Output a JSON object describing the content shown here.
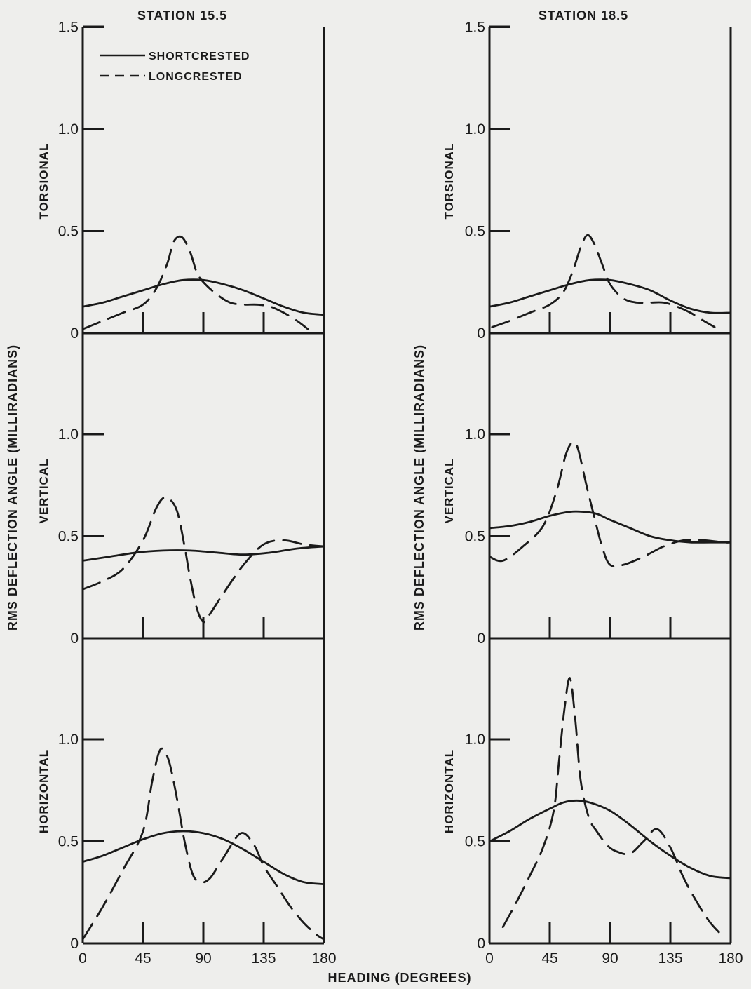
{
  "page": {
    "y_axis_title": "RMS DEFLECTION ANGLE (MILLIRADIANS)",
    "x_axis_title": "HEADING (DEGREES)",
    "legend": {
      "solid": "SHORTCRESTED",
      "dashed": "LONGCRESTED"
    },
    "colors": {
      "ink": "#1a1a1a",
      "background": "#eeeeec"
    }
  },
  "chart_data": [
    {
      "type": "line",
      "title": "STATION 15.5",
      "panel_label": "TORSIONAL",
      "xlim": [
        0,
        180
      ],
      "ylim": [
        0,
        1.5
      ],
      "x_ticks": [
        0,
        45,
        90,
        135,
        180
      ],
      "y_ticks": [
        "0",
        "0.5",
        "1.0",
        "1.5"
      ],
      "series": [
        {
          "name": "SHORTCRESTED",
          "style": "solid",
          "x": [
            0,
            15,
            30,
            45,
            60,
            75,
            90,
            105,
            120,
            135,
            150,
            165,
            180
          ],
          "y": [
            0.13,
            0.15,
            0.18,
            0.21,
            0.24,
            0.26,
            0.26,
            0.24,
            0.21,
            0.17,
            0.13,
            0.1,
            0.09
          ]
        },
        {
          "name": "LONGCRESTED",
          "style": "dashed",
          "x": [
            0,
            15,
            30,
            45,
            55,
            63,
            68,
            74,
            80,
            85,
            90,
            100,
            110,
            120,
            130,
            140,
            150,
            160,
            168
          ],
          "y": [
            0.02,
            0.06,
            0.1,
            0.14,
            0.22,
            0.34,
            0.45,
            0.47,
            0.4,
            0.3,
            0.25,
            0.19,
            0.15,
            0.14,
            0.14,
            0.13,
            0.1,
            0.06,
            0.02
          ]
        }
      ]
    },
    {
      "type": "line",
      "title": "",
      "panel_label": "VERTICAL",
      "xlim": [
        0,
        180
      ],
      "ylim": [
        0,
        1.5
      ],
      "x_ticks": [
        0,
        45,
        90,
        135,
        180
      ],
      "y_ticks": [
        "0",
        "0.5",
        "1.0"
      ],
      "series": [
        {
          "name": "SHORTCRESTED",
          "style": "solid",
          "x": [
            0,
            20,
            40,
            60,
            80,
            100,
            120,
            140,
            160,
            180
          ],
          "y": [
            0.38,
            0.4,
            0.42,
            0.43,
            0.43,
            0.42,
            0.41,
            0.42,
            0.44,
            0.45
          ]
        },
        {
          "name": "LONGCRESTED",
          "style": "dashed",
          "x": [
            0,
            15,
            30,
            45,
            55,
            62,
            70,
            76,
            80,
            85,
            90,
            95,
            105,
            120,
            135,
            150,
            165,
            180
          ],
          "y": [
            0.24,
            0.28,
            0.34,
            0.48,
            0.64,
            0.69,
            0.63,
            0.45,
            0.3,
            0.15,
            0.08,
            0.12,
            0.22,
            0.36,
            0.46,
            0.48,
            0.46,
            0.45
          ]
        }
      ]
    },
    {
      "type": "line",
      "title": "",
      "panel_label": "HORIZONTAL",
      "xlim": [
        0,
        180
      ],
      "ylim": [
        0,
        1.5
      ],
      "x_ticks": [
        0,
        45,
        90,
        135,
        180
      ],
      "x_tick_labels": [
        "0",
        "45",
        "90",
        "135",
        "180"
      ],
      "y_ticks": [
        "0",
        "0.5",
        "1.0"
      ],
      "series": [
        {
          "name": "SHORTCRESTED",
          "style": "solid",
          "x": [
            0,
            15,
            30,
            45,
            60,
            75,
            90,
            105,
            120,
            135,
            150,
            165,
            180
          ],
          "y": [
            0.4,
            0.43,
            0.47,
            0.51,
            0.54,
            0.55,
            0.54,
            0.51,
            0.46,
            0.4,
            0.34,
            0.3,
            0.29
          ]
        },
        {
          "name": "LONGCRESTED",
          "style": "dashed",
          "x": [
            0,
            15,
            30,
            45,
            52,
            58,
            64,
            70,
            76,
            82,
            88,
            95,
            105,
            118,
            128,
            135,
            145,
            155,
            165,
            175,
            180
          ],
          "y": [
            0.02,
            0.18,
            0.36,
            0.55,
            0.8,
            0.95,
            0.9,
            0.72,
            0.5,
            0.34,
            0.3,
            0.32,
            0.42,
            0.54,
            0.48,
            0.38,
            0.28,
            0.18,
            0.1,
            0.04,
            0.02
          ]
        }
      ]
    },
    {
      "type": "line",
      "title": "STATION 18.5",
      "panel_label": "TORSIONAL",
      "xlim": [
        0,
        180
      ],
      "ylim": [
        0,
        1.5
      ],
      "x_ticks": [
        0,
        45,
        90,
        135,
        180
      ],
      "y_ticks": [
        "0",
        "0.5",
        "1.0",
        "1.5"
      ],
      "series": [
        {
          "name": "SHORTCRESTED",
          "style": "solid",
          "x": [
            0,
            15,
            30,
            45,
            60,
            75,
            90,
            105,
            120,
            135,
            150,
            165,
            180
          ],
          "y": [
            0.13,
            0.15,
            0.18,
            0.21,
            0.24,
            0.26,
            0.26,
            0.24,
            0.21,
            0.16,
            0.12,
            0.1,
            0.1
          ]
        },
        {
          "name": "LONGCRESTED",
          "style": "dashed",
          "x": [
            2,
            15,
            30,
            45,
            55,
            62,
            68,
            73,
            78,
            84,
            90,
            100,
            110,
            120,
            130,
            140,
            150,
            160,
            168
          ],
          "y": [
            0.03,
            0.06,
            0.1,
            0.14,
            0.2,
            0.3,
            0.42,
            0.48,
            0.44,
            0.34,
            0.24,
            0.17,
            0.15,
            0.15,
            0.15,
            0.13,
            0.1,
            0.06,
            0.03
          ]
        }
      ]
    },
    {
      "type": "line",
      "title": "",
      "panel_label": "VERTICAL",
      "xlim": [
        0,
        180
      ],
      "ylim": [
        0,
        1.5
      ],
      "x_ticks": [
        0,
        45,
        90,
        135,
        180
      ],
      "y_ticks": [
        "0",
        "0.5",
        "1.0"
      ],
      "series": [
        {
          "name": "SHORTCRESTED",
          "style": "solid",
          "x": [
            0,
            15,
            30,
            45,
            60,
            70,
            80,
            90,
            105,
            120,
            135,
            150,
            165,
            180
          ],
          "y": [
            0.54,
            0.55,
            0.57,
            0.6,
            0.62,
            0.62,
            0.61,
            0.58,
            0.54,
            0.5,
            0.48,
            0.47,
            0.47,
            0.47
          ]
        },
        {
          "name": "LONGCRESTED",
          "style": "dashed",
          "x": [
            0,
            10,
            25,
            40,
            50,
            57,
            62,
            66,
            72,
            78,
            84,
            90,
            100,
            115,
            130,
            145,
            160,
            175,
            180
          ],
          "y": [
            0.4,
            0.38,
            0.45,
            0.55,
            0.72,
            0.9,
            0.96,
            0.93,
            0.76,
            0.6,
            0.45,
            0.36,
            0.36,
            0.4,
            0.45,
            0.48,
            0.48,
            0.47,
            0.47
          ]
        }
      ]
    },
    {
      "type": "line",
      "title": "",
      "panel_label": "HORIZONTAL",
      "xlim": [
        0,
        180
      ],
      "ylim": [
        0,
        1.5
      ],
      "x_ticks": [
        0,
        45,
        90,
        135,
        180
      ],
      "x_tick_labels": [
        "0",
        "45",
        "90",
        "135",
        "180"
      ],
      "y_ticks": [
        "0",
        "0.5",
        "1.0"
      ],
      "series": [
        {
          "name": "SHORTCRESTED",
          "style": "solid",
          "x": [
            0,
            15,
            30,
            45,
            55,
            65,
            75,
            90,
            105,
            120,
            135,
            150,
            165,
            180
          ],
          "y": [
            0.5,
            0.55,
            0.61,
            0.66,
            0.69,
            0.7,
            0.69,
            0.65,
            0.58,
            0.5,
            0.43,
            0.37,
            0.33,
            0.32
          ]
        },
        {
          "name": "LONGCRESTED",
          "style": "dashed",
          "x": [
            10,
            20,
            30,
            40,
            48,
            52,
            56,
            60,
            64,
            68,
            74,
            80,
            88,
            95,
            105,
            115,
            125,
            135,
            145,
            155,
            165,
            175
          ],
          "y": [
            0.08,
            0.2,
            0.33,
            0.47,
            0.65,
            0.9,
            1.15,
            1.3,
            1.1,
            0.8,
            0.62,
            0.55,
            0.48,
            0.45,
            0.44,
            0.5,
            0.56,
            0.47,
            0.32,
            0.2,
            0.1,
            0.03
          ]
        }
      ]
    }
  ]
}
